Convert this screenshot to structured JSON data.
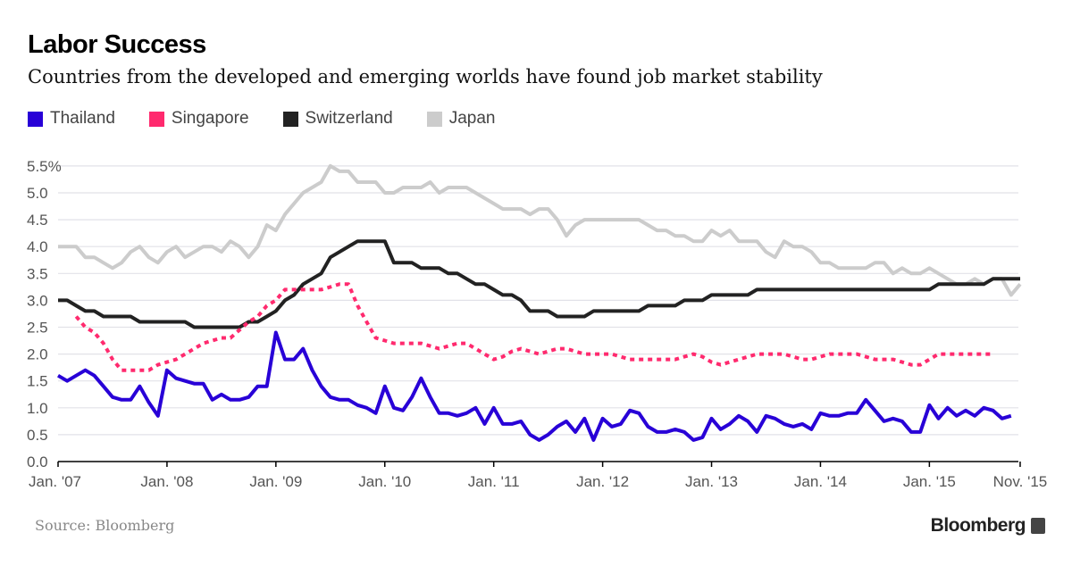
{
  "header": {
    "title": "Labor Success",
    "subtitle": "Countries from the developed and emerging worlds have found job market stability"
  },
  "footer": {
    "source": "Source: Bloomberg",
    "logo": "Bloomberg"
  },
  "chart_data": {
    "type": "line",
    "title": "Labor Success",
    "subtitle": "Countries from the developed and emerging worlds have found job market stability",
    "xlabel": "",
    "ylabel": "",
    "ylim": [
      0,
      5.5
    ],
    "yticks": [
      "0.0",
      "0.5",
      "1.0",
      "1.5",
      "2.0",
      "2.5",
      "3.0",
      "3.5",
      "4.0",
      "4.5",
      "5.0",
      "5.5%"
    ],
    "xticks": [
      "Jan. '07",
      "Jan. '08",
      "Jan. '09",
      "Jan. '10",
      "Jan. '11",
      "Jan. '12",
      "Jan. '13",
      "Jan. '14",
      "Jan. '15",
      "Nov. '15"
    ],
    "xlim": [
      "2007-01",
      "2015-11"
    ],
    "grid": true,
    "legend": "top-left",
    "frequency": "monthly",
    "series": [
      {
        "name": "Thailand",
        "color": "#2800d7",
        "style": "solid",
        "start": "2007-01",
        "values": [
          1.6,
          1.5,
          1.6,
          1.7,
          1.6,
          1.4,
          1.2,
          1.15,
          1.15,
          1.4,
          1.1,
          0.85,
          1.7,
          1.55,
          1.5,
          1.45,
          1.45,
          1.15,
          1.25,
          1.15,
          1.15,
          1.2,
          1.4,
          1.4,
          2.4,
          1.9,
          1.9,
          2.1,
          1.7,
          1.4,
          1.2,
          1.15,
          1.15,
          1.05,
          1.0,
          0.9,
          1.4,
          1.0,
          0.95,
          1.2,
          1.55,
          1.2,
          0.9,
          0.9,
          0.85,
          0.9,
          1.0,
          0.7,
          1.0,
          0.7,
          0.7,
          0.75,
          0.5,
          0.4,
          0.5,
          0.65,
          0.75,
          0.55,
          0.8,
          0.4,
          0.8,
          0.65,
          0.7,
          0.95,
          0.9,
          0.65,
          0.55,
          0.55,
          0.6,
          0.55,
          0.4,
          0.45,
          0.8,
          0.6,
          0.7,
          0.85,
          0.75,
          0.55,
          0.85,
          0.8,
          0.7,
          0.65,
          0.7,
          0.6,
          0.9,
          0.85,
          0.85,
          0.9,
          0.9,
          1.15,
          0.95,
          0.75,
          0.8,
          0.75,
          0.55,
          0.55,
          1.05,
          0.8,
          1.0,
          0.85,
          0.95,
          0.85,
          1.0,
          0.95,
          0.8,
          0.85
        ]
      },
      {
        "name": "Singapore",
        "color": "#ff2a6e",
        "style": "dotted",
        "start": "2007-03",
        "values": [
          2.7,
          2.5,
          2.4,
          2.2,
          1.9,
          1.7,
          1.7,
          1.7,
          1.7,
          1.8,
          1.85,
          1.9,
          2.0,
          2.1,
          2.2,
          2.25,
          2.3,
          2.3,
          2.45,
          2.6,
          2.7,
          2.9,
          3.0,
          3.2,
          3.2,
          3.2,
          3.2,
          3.2,
          3.25,
          3.3,
          3.3,
          2.9,
          2.6,
          2.3,
          2.25,
          2.2,
          2.2,
          2.2,
          2.2,
          2.15,
          2.1,
          2.15,
          2.2,
          2.2,
          2.1,
          2.0,
          1.9,
          1.95,
          2.05,
          2.1,
          2.05,
          2.0,
          2.05,
          2.1,
          2.1,
          2.05,
          2.0,
          2.0,
          2.0,
          2.0,
          1.95,
          1.9,
          1.9,
          1.9,
          1.9,
          1.9,
          1.9,
          1.95,
          2.0,
          1.95,
          1.85,
          1.8,
          1.85,
          1.9,
          1.95,
          2.0,
          2.0,
          2.0,
          2.0,
          1.95,
          1.9,
          1.9,
          1.95,
          2.0,
          2.0,
          2.0,
          2.0,
          1.95,
          1.9,
          1.9,
          1.9,
          1.85,
          1.8,
          1.8,
          1.9,
          2.0,
          2.0,
          2.0,
          2.0,
          2.0,
          2.0,
          2.0
        ]
      },
      {
        "name": "Switzerland",
        "color": "#222222",
        "style": "solid",
        "start": "2007-01",
        "values": [
          3.0,
          3.0,
          2.9,
          2.8,
          2.8,
          2.7,
          2.7,
          2.7,
          2.7,
          2.6,
          2.6,
          2.6,
          2.6,
          2.6,
          2.6,
          2.5,
          2.5,
          2.5,
          2.5,
          2.5,
          2.5,
          2.6,
          2.6,
          2.7,
          2.8,
          3.0,
          3.1,
          3.3,
          3.4,
          3.5,
          3.8,
          3.9,
          4.0,
          4.1,
          4.1,
          4.1,
          4.1,
          3.7,
          3.7,
          3.7,
          3.6,
          3.6,
          3.6,
          3.5,
          3.5,
          3.4,
          3.3,
          3.3,
          3.2,
          3.1,
          3.1,
          3.0,
          2.8,
          2.8,
          2.8,
          2.7,
          2.7,
          2.7,
          2.7,
          2.8,
          2.8,
          2.8,
          2.8,
          2.8,
          2.8,
          2.9,
          2.9,
          2.9,
          2.9,
          3.0,
          3.0,
          3.0,
          3.1,
          3.1,
          3.1,
          3.1,
          3.1,
          3.2,
          3.2,
          3.2,
          3.2,
          3.2,
          3.2,
          3.2,
          3.2,
          3.2,
          3.2,
          3.2,
          3.2,
          3.2,
          3.2,
          3.2,
          3.2,
          3.2,
          3.2,
          3.2,
          3.2,
          3.3,
          3.3,
          3.3,
          3.3,
          3.3,
          3.3,
          3.4,
          3.4,
          3.4,
          3.4
        ]
      },
      {
        "name": "Japan",
        "color": "#cccccc",
        "style": "solid",
        "start": "2007-01",
        "values": [
          4.0,
          4.0,
          4.0,
          3.8,
          3.8,
          3.7,
          3.6,
          3.7,
          3.9,
          4.0,
          3.8,
          3.7,
          3.9,
          4.0,
          3.8,
          3.9,
          4.0,
          4.0,
          3.9,
          4.1,
          4.0,
          3.8,
          4.0,
          4.4,
          4.3,
          4.6,
          4.8,
          5.0,
          5.1,
          5.2,
          5.5,
          5.4,
          5.4,
          5.2,
          5.2,
          5.2,
          5.0,
          5.0,
          5.1,
          5.1,
          5.1,
          5.2,
          5.0,
          5.1,
          5.1,
          5.1,
          5.0,
          4.9,
          4.8,
          4.7,
          4.7,
          4.7,
          4.6,
          4.7,
          4.7,
          4.5,
          4.2,
          4.4,
          4.5,
          4.5,
          4.5,
          4.5,
          4.5,
          4.5,
          4.5,
          4.4,
          4.3,
          4.3,
          4.2,
          4.2,
          4.1,
          4.1,
          4.3,
          4.2,
          4.3,
          4.1,
          4.1,
          4.1,
          3.9,
          3.8,
          4.1,
          4.0,
          4.0,
          3.9,
          3.7,
          3.7,
          3.6,
          3.6,
          3.6,
          3.6,
          3.7,
          3.7,
          3.5,
          3.6,
          3.5,
          3.5,
          3.6,
          3.5,
          3.4,
          3.3,
          3.3,
          3.4,
          3.3,
          3.4,
          3.4,
          3.1,
          3.3
        ]
      }
    ]
  }
}
